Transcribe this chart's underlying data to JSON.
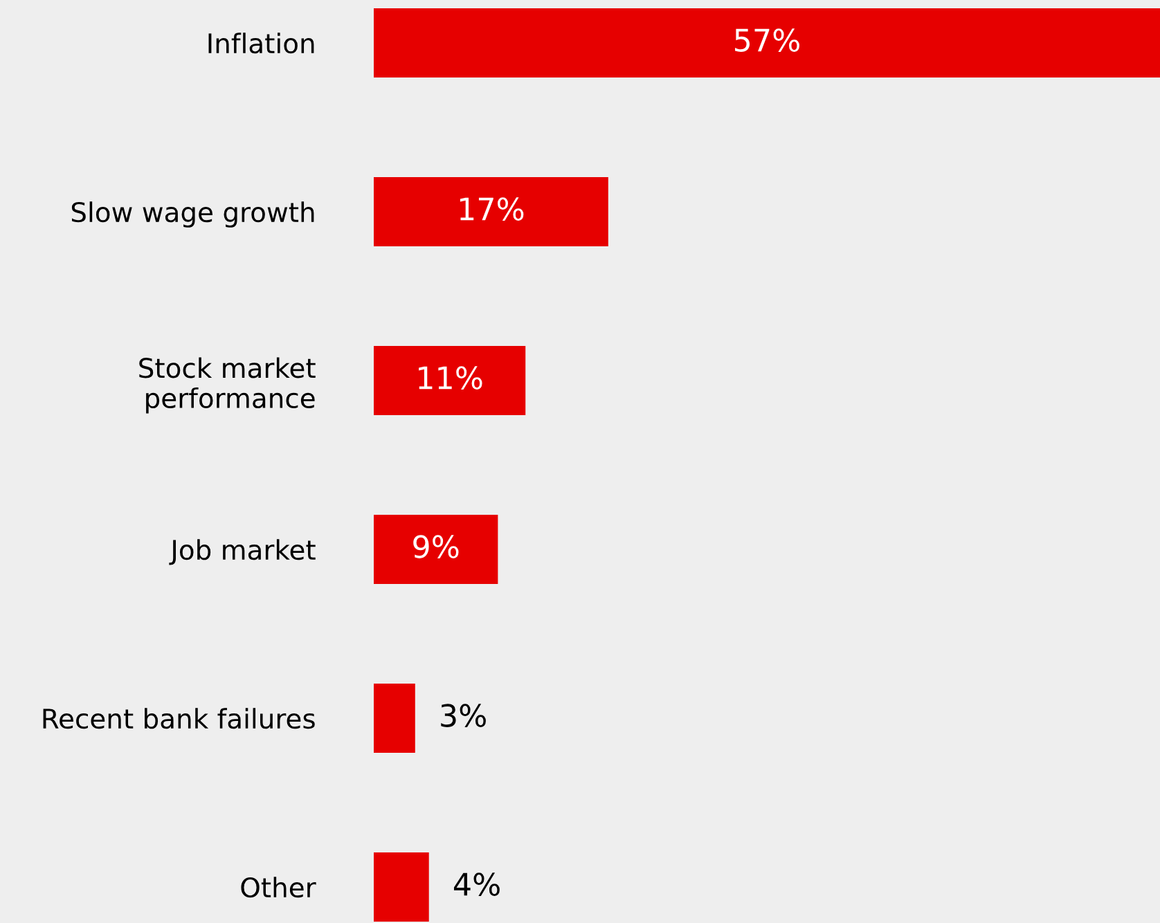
{
  "chart_data": {
    "type": "bar",
    "orientation": "horizontal",
    "categories": [
      "Inflation",
      "Slow wage growth",
      "Stock market\nperformance",
      "Job market",
      "Recent bank failures",
      "Other"
    ],
    "values": [
      57,
      17,
      11,
      9,
      3,
      4
    ],
    "value_labels": [
      "57%",
      "17%",
      "11%",
      "9%",
      "3%",
      "4%"
    ],
    "color": "#e60000",
    "xlim": [
      0,
      57
    ],
    "grid": false,
    "legend": false
  }
}
